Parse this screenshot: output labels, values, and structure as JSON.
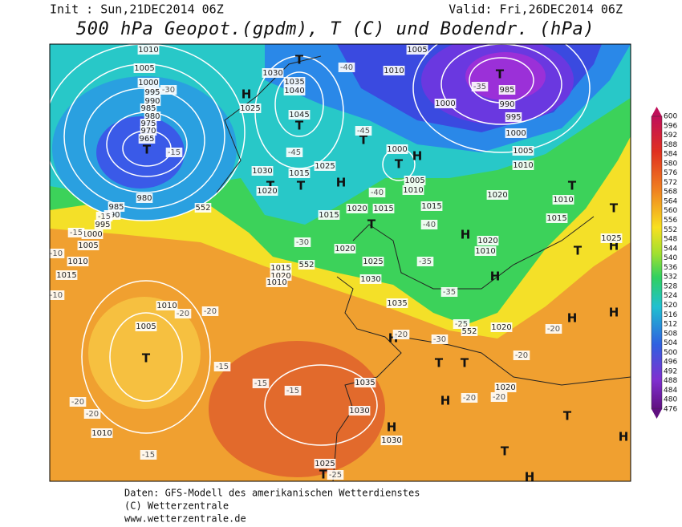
{
  "header": {
    "init": "Init : Sun,21DEC2014 06Z",
    "valid": "Valid: Fri,26DEC2014 06Z",
    "title": "500 hPa Geopot.(gpdm), T (C) und Bodendr. (hPa)"
  },
  "colorbar": {
    "labels": [
      600,
      596,
      592,
      588,
      584,
      580,
      576,
      572,
      568,
      564,
      560,
      556,
      552,
      548,
      544,
      540,
      536,
      532,
      528,
      524,
      520,
      516,
      512,
      508,
      504,
      500,
      496,
      492,
      488,
      484,
      480,
      476
    ]
  },
  "map": {
    "labels": [
      "T",
      "T",
      "T",
      "T",
      "T",
      "T",
      "T",
      "T",
      "T",
      "T",
      "T",
      "T",
      "T",
      "T",
      "T",
      "T",
      "T",
      "T",
      "H",
      "H",
      "H",
      "H",
      "H",
      "H",
      "H",
      "H",
      "H",
      "H",
      "H",
      "H",
      "H",
      "1010",
      "1005",
      "1000",
      "995",
      "990",
      "985",
      "980",
      "975",
      "970",
      "965",
      "1030",
      "1035",
      "1040",
      "1025",
      "1045",
      "1030",
      "1015",
      "1025",
      "1020",
      "1020",
      "1015",
      "1015",
      "1000",
      "1005",
      "1010",
      "1015",
      "1020",
      "1010",
      "1015",
      "1025",
      "1020",
      "1010",
      "1020",
      "1025",
      "1030",
      "1015",
      "1020",
      "1010",
      "1035",
      "1020",
      "1005",
      "1010",
      "1010",
      "1015",
      "1005",
      "1000",
      "995",
      "990",
      "985",
      "980",
      "1035",
      "1030",
      "1030",
      "1025",
      "1020",
      "1010",
      "1005",
      "1010",
      "1000",
      "985",
      "990",
      "995",
      "1000",
      "1005",
      "1010",
      "-30",
      "-15",
      "-40",
      "-35",
      "-45",
      "-45",
      "-40",
      "-40",
      "-30",
      "-35",
      "-35",
      "-15",
      "-15",
      "-10",
      "-10",
      "-20",
      "-20",
      "-20",
      "-25",
      "-30",
      "-20",
      "-20",
      "-20",
      "-20",
      "-15",
      "-15",
      "-15",
      "-20",
      "-20",
      "-15",
      "-25",
      "552",
      "552",
      "552"
    ]
  },
  "footer": {
    "line1": "Daten: GFS-Modell des amerikanischen Wetterdienstes",
    "line2": "(C) Wetterzentrale",
    "line3": "www.wetterzentrale.de"
  }
}
